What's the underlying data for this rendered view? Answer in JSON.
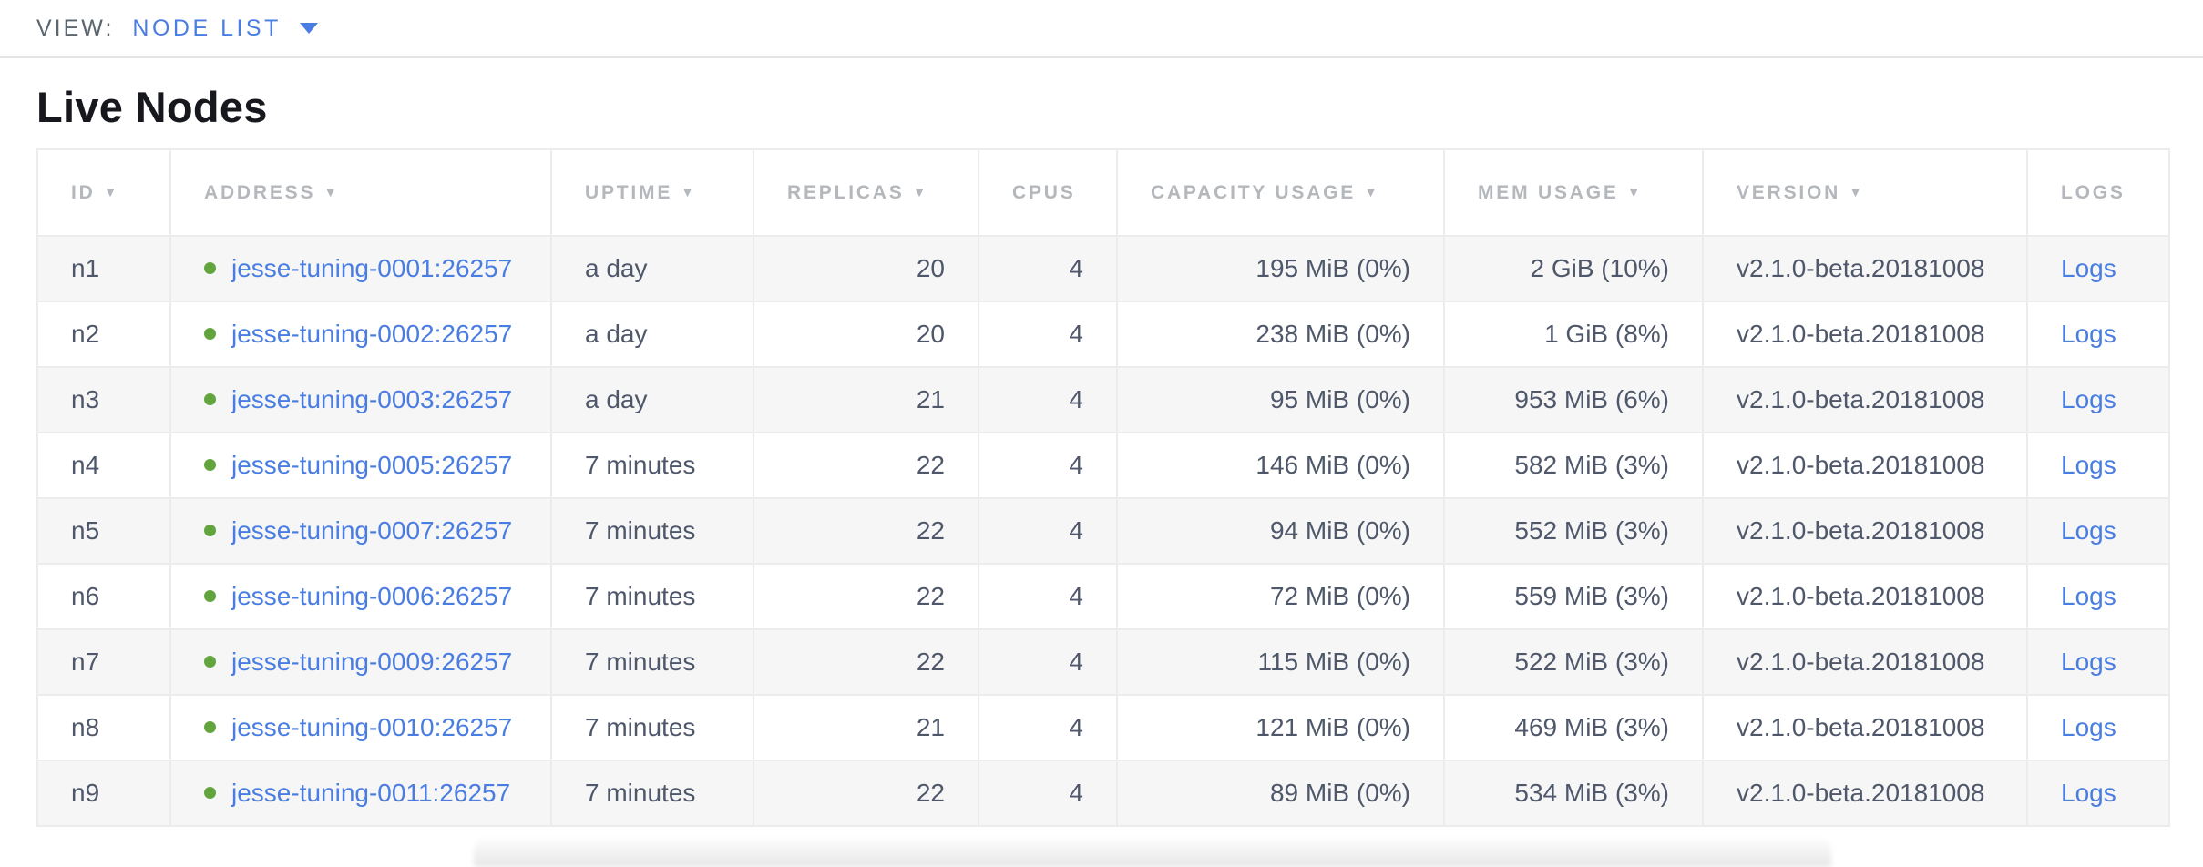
{
  "view_bar": {
    "label": "VIEW:",
    "selected": "NODE LIST"
  },
  "page": {
    "title": "Live Nodes"
  },
  "table": {
    "sort_icon": "▼",
    "logs_label": "Logs",
    "columns": [
      {
        "field": "id",
        "label": "ID",
        "sortable": true,
        "align": "left"
      },
      {
        "field": "address",
        "label": "ADDRESS",
        "sortable": true,
        "align": "left"
      },
      {
        "field": "uptime",
        "label": "UPTIME",
        "sortable": true,
        "align": "left"
      },
      {
        "field": "replicas",
        "label": "REPLICAS",
        "sortable": true,
        "align": "right"
      },
      {
        "field": "cpus",
        "label": "CPUS",
        "sortable": false,
        "align": "right"
      },
      {
        "field": "capacity_usage",
        "label": "CAPACITY USAGE",
        "sortable": true,
        "align": "right"
      },
      {
        "field": "mem_usage",
        "label": "MEM USAGE",
        "sortable": true,
        "align": "right"
      },
      {
        "field": "version",
        "label": "VERSION",
        "sortable": true,
        "align": "left"
      },
      {
        "field": "logs",
        "label": "LOGS",
        "sortable": false,
        "align": "left"
      }
    ],
    "rows": [
      {
        "id": "n1",
        "status": "live",
        "address": "jesse-tuning-0001:26257",
        "uptime": "a day",
        "replicas": "20",
        "cpus": "4",
        "capacity_usage": "195 MiB (0%)",
        "mem_usage": "2 GiB (10%)",
        "version": "v2.1.0-beta.20181008"
      },
      {
        "id": "n2",
        "status": "live",
        "address": "jesse-tuning-0002:26257",
        "uptime": "a day",
        "replicas": "20",
        "cpus": "4",
        "capacity_usage": "238 MiB (0%)",
        "mem_usage": "1 GiB (8%)",
        "version": "v2.1.0-beta.20181008"
      },
      {
        "id": "n3",
        "status": "live",
        "address": "jesse-tuning-0003:26257",
        "uptime": "a day",
        "replicas": "21",
        "cpus": "4",
        "capacity_usage": "95 MiB (0%)",
        "mem_usage": "953 MiB (6%)",
        "version": "v2.1.0-beta.20181008"
      },
      {
        "id": "n4",
        "status": "live",
        "address": "jesse-tuning-0005:26257",
        "uptime": "7 minutes",
        "replicas": "22",
        "cpus": "4",
        "capacity_usage": "146 MiB (0%)",
        "mem_usage": "582 MiB (3%)",
        "version": "v2.1.0-beta.20181008"
      },
      {
        "id": "n5",
        "status": "live",
        "address": "jesse-tuning-0007:26257",
        "uptime": "7 minutes",
        "replicas": "22",
        "cpus": "4",
        "capacity_usage": "94 MiB (0%)",
        "mem_usage": "552 MiB (3%)",
        "version": "v2.1.0-beta.20181008"
      },
      {
        "id": "n6",
        "status": "live",
        "address": "jesse-tuning-0006:26257",
        "uptime": "7 minutes",
        "replicas": "22",
        "cpus": "4",
        "capacity_usage": "72 MiB (0%)",
        "mem_usage": "559 MiB (3%)",
        "version": "v2.1.0-beta.20181008"
      },
      {
        "id": "n7",
        "status": "live",
        "address": "jesse-tuning-0009:26257",
        "uptime": "7 minutes",
        "replicas": "22",
        "cpus": "4",
        "capacity_usage": "115 MiB (0%)",
        "mem_usage": "522 MiB (3%)",
        "version": "v2.1.0-beta.20181008"
      },
      {
        "id": "n8",
        "status": "live",
        "address": "jesse-tuning-0010:26257",
        "uptime": "7 minutes",
        "replicas": "21",
        "cpus": "4",
        "capacity_usage": "121 MiB (0%)",
        "mem_usage": "469 MiB (3%)",
        "version": "v2.1.0-beta.20181008"
      },
      {
        "id": "n9",
        "status": "live",
        "address": "jesse-tuning-0011:26257",
        "uptime": "7 minutes",
        "replicas": "22",
        "cpus": "4",
        "capacity_usage": "89 MiB (0%)",
        "mem_usage": "534 MiB (3%)",
        "version": "v2.1.0-beta.20181008"
      }
    ]
  },
  "colors": {
    "accent_blue": "#4a7de2",
    "link_blue": "#4a7de2",
    "live_green": "#62a53c",
    "header_gray": "#b4b7bb",
    "row_shade": "#f6f6f7",
    "cell_text": "#4f586a"
  }
}
